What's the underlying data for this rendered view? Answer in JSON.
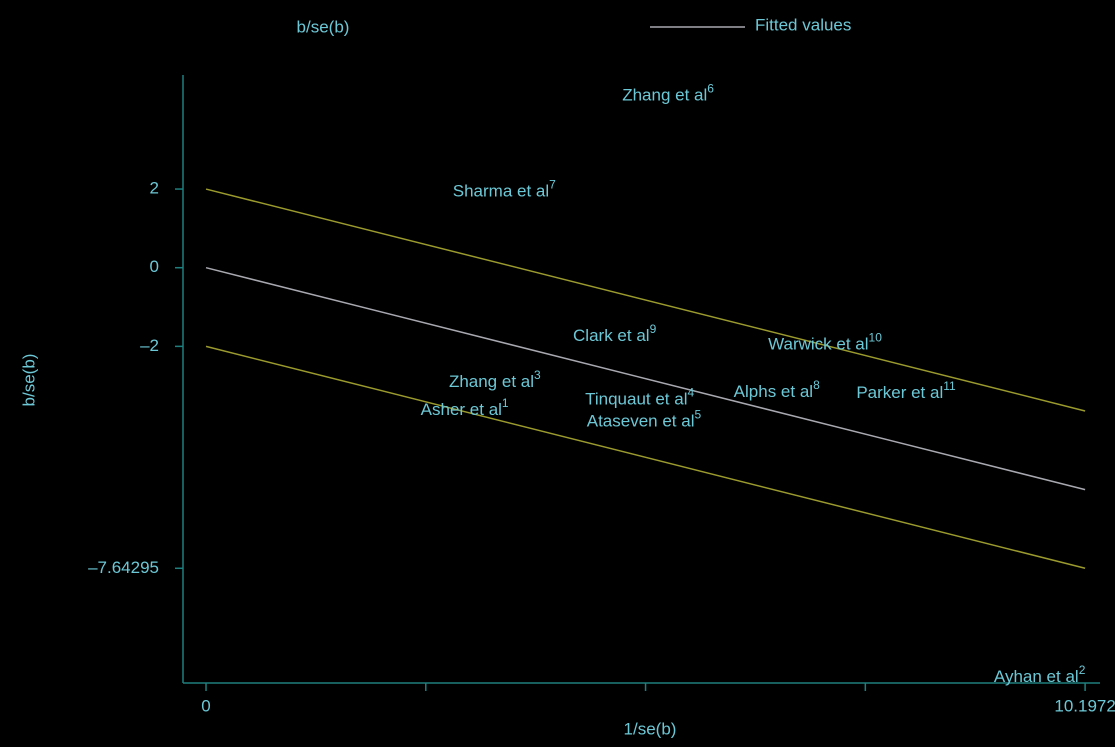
{
  "chart_data": {
    "type": "scatter",
    "title": "b/se(b)",
    "x_label": "1/se(b)",
    "y_label": "b/se(b)",
    "xlim": [
      -0.267,
      10.37
    ],
    "ylim": [
      -10.56,
      4.9
    ],
    "xticks": [
      0,
      10.1972
    ],
    "x_minor_ticks": [
      2.5493,
      5.0986,
      7.6479
    ],
    "yticks": [
      2,
      0,
      {
        "value": -2,
        "label": "–2"
      },
      {
        "value": -7.64295,
        "label": "–7.64295"
      }
    ],
    "points": {
      "color": "#6cc8d6",
      "labels": [
        "Zhang et al",
        "Sharma et al",
        "Clark et al",
        "Warwick et al",
        "Zhang et al",
        "Asher et al",
        "Tinquaut et al",
        "Ataseven et al",
        "Alphs et al",
        "Parker et al",
        "Ayhan et al"
      ],
      "refs": [
        "6",
        "7",
        "9",
        "10",
        "3",
        "1",
        "4",
        "5",
        "8",
        "11",
        "2"
      ],
      "x": [
        5.36,
        3.46,
        4.74,
        7.18,
        3.35,
        3.0,
        5.03,
        5.08,
        6.62,
        8.12,
        9.67
      ],
      "values": [
        4.35,
        1.91,
        -1.76,
        -1.98,
        -2.93,
        -3.64,
        -3.38,
        -3.94,
        -3.18,
        -3.21,
        -10.43
      ]
    },
    "series": [
      {
        "name": "Fitted values",
        "color": "#a8a8b0",
        "x": [
          0,
          10.1972
        ],
        "values": [
          0,
          -5.64295
        ]
      },
      {
        "color": "#9a9a2e",
        "x": [
          0,
          10.1972
        ],
        "values": [
          2,
          -3.64295
        ]
      },
      {
        "color": "#9a9a2e",
        "x": [
          0,
          10.1972
        ],
        "values": [
          -2,
          -7.64295
        ]
      }
    ]
  }
}
